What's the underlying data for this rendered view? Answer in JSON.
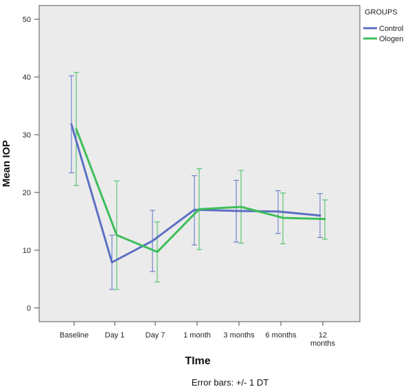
{
  "chart_data": {
    "type": "line",
    "categories": [
      "Baseline",
      "Day 1",
      "Day 7",
      "1 month",
      "3 months",
      "6 months",
      "12 months"
    ],
    "xlabel": "TIme",
    "ylabel": "Mean IOP",
    "ylim": [
      0,
      50
    ],
    "yticks": [
      0,
      10,
      20,
      30,
      40,
      50
    ],
    "grid": false,
    "legend": {
      "title": "GROUPS",
      "placement": "outside-top-right"
    },
    "note": "Error bars: +/- 1 DT",
    "series": [
      {
        "name": "Control",
        "color": "#5B6FC4",
        "values": [
          31.8,
          7.9,
          11.6,
          17.0,
          16.8,
          16.7,
          16.0
        ],
        "error_low": [
          23.4,
          3.2,
          6.3,
          10.9,
          11.4,
          12.9,
          12.2
        ],
        "error_high": [
          40.2,
          12.6,
          16.9,
          22.9,
          22.1,
          20.3,
          19.8
        ]
      },
      {
        "name": "Ologen",
        "color": "#3DBE5A",
        "values": [
          31.0,
          12.6,
          9.7,
          17.1,
          17.5,
          15.6,
          15.4
        ],
        "error_low": [
          21.2,
          3.2,
          4.5,
          10.1,
          11.2,
          11.1,
          11.9
        ],
        "error_high": [
          40.8,
          22.0,
          14.9,
          24.1,
          23.8,
          19.9,
          18.7
        ]
      }
    ]
  }
}
